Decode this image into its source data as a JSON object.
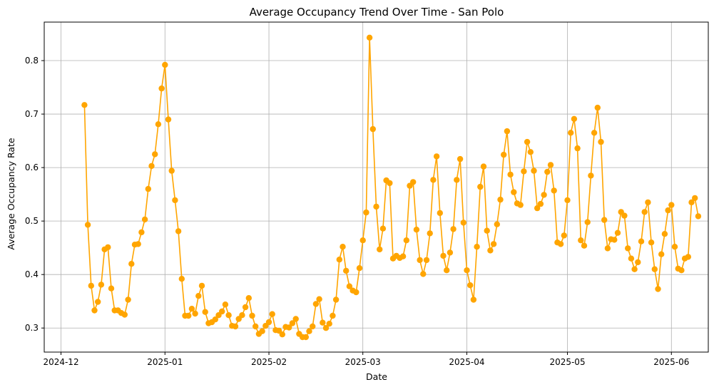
{
  "chart_data": {
    "type": "line",
    "title": "Average Occupancy Trend Over Time - San Polo",
    "xlabel": "Date",
    "ylabel": "Average Occupancy Rate",
    "x_tick_labels": [
      "2024-12",
      "2025-01",
      "2025-02",
      "2025-03",
      "2025-04",
      "2025-05",
      "2025-06"
    ],
    "y_tick_labels": [
      "0.3",
      "0.4",
      "0.5",
      "0.6",
      "0.7",
      "0.8"
    ],
    "ylim": [
      0.255,
      0.872
    ],
    "xlim": [
      "2024-11-26",
      "2025-06-12"
    ],
    "grid": true,
    "marker": "circle",
    "line_color": "#ffa500",
    "series": [
      {
        "values": [
          [
            "2024-12-08",
            0.717
          ],
          [
            "2024-12-09",
            0.493
          ],
          [
            "2024-12-10",
            0.379
          ],
          [
            "2024-12-11",
            0.333
          ],
          [
            "2024-12-12",
            0.349
          ],
          [
            "2024-12-13",
            0.381
          ],
          [
            "2024-12-14",
            0.447
          ],
          [
            "2024-12-15",
            0.451
          ],
          [
            "2024-12-16",
            0.374
          ],
          [
            "2024-12-17",
            0.333
          ],
          [
            "2024-12-18",
            0.333
          ],
          [
            "2024-12-19",
            0.328
          ],
          [
            "2024-12-20",
            0.325
          ],
          [
            "2024-12-21",
            0.353
          ],
          [
            "2024-12-22",
            0.42
          ],
          [
            "2024-12-23",
            0.456
          ],
          [
            "2024-12-24",
            0.457
          ],
          [
            "2024-12-25",
            0.479
          ],
          [
            "2024-12-26",
            0.503
          ],
          [
            "2024-12-27",
            0.56
          ],
          [
            "2024-12-28",
            0.603
          ],
          [
            "2024-12-29",
            0.625
          ],
          [
            "2024-12-30",
            0.681
          ],
          [
            "2024-12-31",
            0.748
          ],
          [
            "2025-01-01",
            0.792
          ],
          [
            "2025-01-02",
            0.69
          ],
          [
            "2025-01-03",
            0.594
          ],
          [
            "2025-01-04",
            0.539
          ],
          [
            "2025-01-05",
            0.481
          ],
          [
            "2025-01-06",
            0.392
          ],
          [
            "2025-01-07",
            0.323
          ],
          [
            "2025-01-08",
            0.323
          ],
          [
            "2025-01-09",
            0.336
          ],
          [
            "2025-01-10",
            0.327
          ],
          [
            "2025-01-11",
            0.36
          ],
          [
            "2025-01-12",
            0.379
          ],
          [
            "2025-01-13",
            0.33
          ],
          [
            "2025-01-14",
            0.309
          ],
          [
            "2025-01-15",
            0.311
          ],
          [
            "2025-01-16",
            0.316
          ],
          [
            "2025-01-17",
            0.324
          ],
          [
            "2025-01-18",
            0.331
          ],
          [
            "2025-01-19",
            0.344
          ],
          [
            "2025-01-20",
            0.324
          ],
          [
            "2025-01-21",
            0.304
          ],
          [
            "2025-01-22",
            0.303
          ],
          [
            "2025-01-23",
            0.317
          ],
          [
            "2025-01-24",
            0.324
          ],
          [
            "2025-01-25",
            0.339
          ],
          [
            "2025-01-26",
            0.356
          ],
          [
            "2025-01-27",
            0.323
          ],
          [
            "2025-01-28",
            0.303
          ],
          [
            "2025-01-29",
            0.289
          ],
          [
            "2025-01-30",
            0.294
          ],
          [
            "2025-01-31",
            0.304
          ],
          [
            "2025-02-01",
            0.311
          ],
          [
            "2025-02-02",
            0.326
          ],
          [
            "2025-02-03",
            0.296
          ],
          [
            "2025-02-04",
            0.295
          ],
          [
            "2025-02-05",
            0.288
          ],
          [
            "2025-02-06",
            0.302
          ],
          [
            "2025-02-07",
            0.301
          ],
          [
            "2025-02-08",
            0.309
          ],
          [
            "2025-02-09",
            0.317
          ],
          [
            "2025-02-10",
            0.289
          ],
          [
            "2025-02-11",
            0.283
          ],
          [
            "2025-02-12",
            0.283
          ],
          [
            "2025-02-13",
            0.294
          ],
          [
            "2025-02-14",
            0.303
          ],
          [
            "2025-02-15",
            0.345
          ],
          [
            "2025-02-16",
            0.354
          ],
          [
            "2025-02-17",
            0.31
          ],
          [
            "2025-02-18",
            0.3
          ],
          [
            "2025-02-19",
            0.308
          ],
          [
            "2025-02-20",
            0.323
          ],
          [
            "2025-02-21",
            0.353
          ],
          [
            "2025-02-22",
            0.428
          ],
          [
            "2025-02-23",
            0.452
          ],
          [
            "2025-02-24",
            0.407
          ],
          [
            "2025-02-25",
            0.378
          ],
          [
            "2025-02-26",
            0.37
          ],
          [
            "2025-02-27",
            0.367
          ],
          [
            "2025-02-28",
            0.412
          ],
          [
            "2025-03-01",
            0.464
          ],
          [
            "2025-03-02",
            0.516
          ],
          [
            "2025-03-03",
            0.843
          ],
          [
            "2025-03-04",
            0.672
          ],
          [
            "2025-03-05",
            0.527
          ],
          [
            "2025-03-06",
            0.447
          ],
          [
            "2025-03-07",
            0.486
          ],
          [
            "2025-03-08",
            0.576
          ],
          [
            "2025-03-09",
            0.571
          ],
          [
            "2025-03-10",
            0.43
          ],
          [
            "2025-03-11",
            0.435
          ],
          [
            "2025-03-12",
            0.431
          ],
          [
            "2025-03-13",
            0.434
          ],
          [
            "2025-03-14",
            0.464
          ],
          [
            "2025-03-15",
            0.566
          ],
          [
            "2025-03-16",
            0.573
          ],
          [
            "2025-03-17",
            0.484
          ],
          [
            "2025-03-18",
            0.427
          ],
          [
            "2025-03-19",
            0.401
          ],
          [
            "2025-03-20",
            0.427
          ],
          [
            "2025-03-21",
            0.477
          ],
          [
            "2025-03-22",
            0.577
          ],
          [
            "2025-03-23",
            0.621
          ],
          [
            "2025-03-24",
            0.515
          ],
          [
            "2025-03-25",
            0.435
          ],
          [
            "2025-03-26",
            0.408
          ],
          [
            "2025-03-27",
            0.441
          ],
          [
            "2025-03-28",
            0.485
          ],
          [
            "2025-03-29",
            0.577
          ],
          [
            "2025-03-30",
            0.616
          ],
          [
            "2025-03-31",
            0.497
          ],
          [
            "2025-04-01",
            0.408
          ],
          [
            "2025-04-02",
            0.38
          ],
          [
            "2025-04-03",
            0.353
          ],
          [
            "2025-04-04",
            0.452
          ],
          [
            "2025-04-05",
            0.564
          ],
          [
            "2025-04-06",
            0.602
          ],
          [
            "2025-04-07",
            0.482
          ],
          [
            "2025-04-08",
            0.445
          ],
          [
            "2025-04-09",
            0.457
          ],
          [
            "2025-04-10",
            0.494
          ],
          [
            "2025-04-11",
            0.54
          ],
          [
            "2025-04-12",
            0.624
          ],
          [
            "2025-04-13",
            0.668
          ],
          [
            "2025-04-14",
            0.587
          ],
          [
            "2025-04-15",
            0.554
          ],
          [
            "2025-04-16",
            0.533
          ],
          [
            "2025-04-17",
            0.53
          ],
          [
            "2025-04-18",
            0.593
          ],
          [
            "2025-04-19",
            0.648
          ],
          [
            "2025-04-20",
            0.629
          ],
          [
            "2025-04-21",
            0.594
          ],
          [
            "2025-04-22",
            0.524
          ],
          [
            "2025-04-23",
            0.532
          ],
          [
            "2025-04-24",
            0.549
          ],
          [
            "2025-04-25",
            0.592
          ],
          [
            "2025-04-26",
            0.605
          ],
          [
            "2025-04-27",
            0.557
          ],
          [
            "2025-04-28",
            0.46
          ],
          [
            "2025-04-29",
            0.457
          ],
          [
            "2025-04-30",
            0.473
          ],
          [
            "2025-05-01",
            0.539
          ],
          [
            "2025-05-02",
            0.665
          ],
          [
            "2025-05-03",
            0.691
          ],
          [
            "2025-05-04",
            0.636
          ],
          [
            "2025-05-05",
            0.464
          ],
          [
            "2025-05-06",
            0.454
          ],
          [
            "2025-05-07",
            0.498
          ],
          [
            "2025-05-08",
            0.585
          ],
          [
            "2025-05-09",
            0.665
          ],
          [
            "2025-05-10",
            0.712
          ],
          [
            "2025-05-11",
            0.648
          ],
          [
            "2025-05-12",
            0.502
          ],
          [
            "2025-05-13",
            0.449
          ],
          [
            "2025-05-14",
            0.466
          ],
          [
            "2025-05-15",
            0.465
          ],
          [
            "2025-05-16",
            0.478
          ],
          [
            "2025-05-17",
            0.517
          ],
          [
            "2025-05-18",
            0.51
          ],
          [
            "2025-05-19",
            0.449
          ],
          [
            "2025-05-20",
            0.43
          ],
          [
            "2025-05-21",
            0.41
          ],
          [
            "2025-05-22",
            0.423
          ],
          [
            "2025-05-23",
            0.462
          ],
          [
            "2025-05-24",
            0.517
          ],
          [
            "2025-05-25",
            0.535
          ],
          [
            "2025-05-26",
            0.46
          ],
          [
            "2025-05-27",
            0.41
          ],
          [
            "2025-05-28",
            0.373
          ],
          [
            "2025-05-29",
            0.438
          ],
          [
            "2025-05-30",
            0.476
          ],
          [
            "2025-05-31",
            0.52
          ],
          [
            "2025-06-01",
            0.53
          ],
          [
            "2025-06-02",
            0.452
          ],
          [
            "2025-06-03",
            0.411
          ],
          [
            "2025-06-04",
            0.408
          ],
          [
            "2025-06-05",
            0.43
          ],
          [
            "2025-06-06",
            0.433
          ],
          [
            "2025-06-07",
            0.535
          ],
          [
            "2025-06-08",
            0.543
          ],
          [
            "2025-06-09",
            0.509
          ]
        ]
      }
    ]
  }
}
